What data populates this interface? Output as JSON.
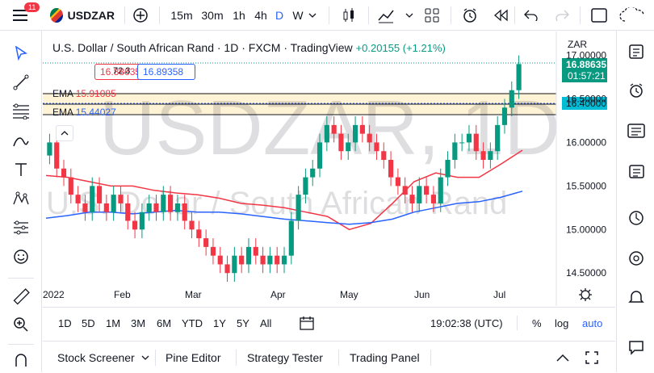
{
  "topbar": {
    "notifications": "11",
    "symbol": "USDZAR",
    "intervals": [
      "15m",
      "30m",
      "1h",
      "4h",
      "D",
      "W"
    ],
    "active_interval": "D"
  },
  "legend": {
    "title": "U.S. Dollar / South African Rand · 1D · FXCM · TradingView",
    "change": "+0.20155 (+1.21%)",
    "bid": "16.88635",
    "spread": "72.3",
    "ask": "16.89358",
    "ema1_label": "EMA",
    "ema1_value": "15.91085",
    "ema2_label": "EMA",
    "ema2_value": "15.44027"
  },
  "watermark": {
    "symbol": "USDZAR, 1D",
    "name": "U.S. Dollar / South African Rand"
  },
  "price_axis": {
    "currency": "ZAR",
    "current_price": "16.88635",
    "countdown": "01:57:21",
    "level_price": "16.40000",
    "ticks": [
      "17.00000",
      "16.50000",
      "16.00000",
      "15.50000",
      "15.00000",
      "14.50000"
    ]
  },
  "time_axis": [
    "2022",
    "Feb",
    "Mar",
    "Apr",
    "May",
    "Jun",
    "Jul"
  ],
  "bottombar": {
    "ranges": [
      "1D",
      "5D",
      "1M",
      "3M",
      "6M",
      "YTD",
      "1Y",
      "5Y",
      "All"
    ],
    "clock": "19:02:38 (UTC)",
    "percent": "%",
    "log": "log",
    "auto": "auto"
  },
  "panels": [
    "Stock Screener",
    "Pine Editor",
    "Strategy Tester",
    "Trading Panel"
  ],
  "colors": {
    "up": "#089981",
    "down": "#f23645",
    "ema_fast": "#f23645",
    "ema_slow": "#2962ff",
    "accent": "#2962ff",
    "zone_fill": "#fff3d6"
  },
  "chart_data": {
    "type": "candlestick",
    "ylim": [
      14.3,
      17.2
    ],
    "current": 16.88635,
    "horizontal_levels": [
      16.4,
      16.3,
      16.62,
      16.5
    ],
    "ema_fast": [
      15.62,
      15.6,
      15.55,
      15.5,
      15.5,
      15.45,
      15.42,
      15.4,
      15.36,
      15.3,
      15.28,
      15.25,
      15.2,
      15.15,
      15.0,
      15.07,
      15.3,
      15.55,
      15.65,
      15.6,
      15.6,
      15.75,
      15.91
    ],
    "ema_slow": [
      15.13,
      15.16,
      15.2,
      15.2,
      15.18,
      15.2,
      15.22,
      15.2,
      15.2,
      15.18,
      15.15,
      15.12,
      15.1,
      15.08,
      15.06,
      15.08,
      15.12,
      15.2,
      15.25,
      15.3,
      15.32,
      15.37,
      15.44
    ],
    "closes": [
      16.0,
      15.7,
      15.6,
      15.4,
      15.3,
      15.2,
      15.5,
      15.3,
      15.2,
      15.4,
      15.3,
      15.1,
      15.0,
      15.2,
      15.3,
      15.2,
      15.4,
      15.2,
      15.3,
      15.1,
      15.0,
      14.9,
      14.8,
      14.7,
      14.6,
      14.5,
      14.7,
      14.6,
      14.8,
      14.7,
      14.6,
      14.7,
      14.6,
      14.7,
      15.1,
      15.4,
      15.6,
      15.7,
      16.0,
      16.2,
      16.1,
      15.9,
      16.0,
      16.2,
      16.1,
      16.0,
      15.9,
      15.8,
      15.6,
      15.5,
      15.4,
      15.3,
      15.5,
      15.4,
      15.3,
      15.6,
      15.8,
      16.0,
      16.0,
      16.1,
      15.9,
      15.8,
      15.9,
      16.2,
      16.4,
      16.6,
      16.9
    ]
  }
}
